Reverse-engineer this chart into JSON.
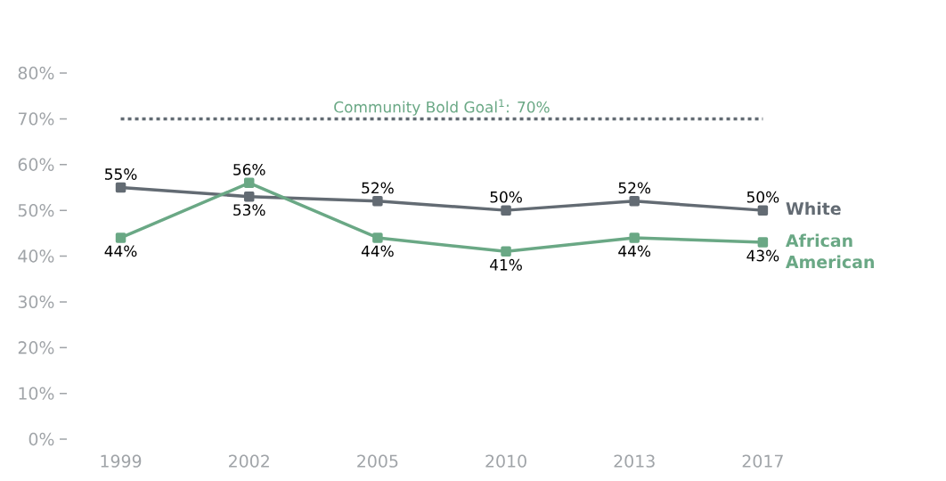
{
  "chart_data": {
    "type": "line",
    "categories": [
      "1999",
      "2002",
      "2005",
      "2010",
      "2013",
      "2017"
    ],
    "series": [
      {
        "name": "White",
        "color": "#636b73",
        "values": [
          55,
          53,
          52,
          50,
          52,
          50
        ],
        "value_labels": [
          "55%",
          "53%",
          "52%",
          "50%",
          "52%",
          "50%"
        ]
      },
      {
        "name": "African American",
        "color": "#6aa885",
        "values": [
          44,
          56,
          44,
          41,
          44,
          43
        ],
        "value_labels": [
          "44%",
          "56%",
          "44%",
          "41%",
          "44%",
          "43%"
        ]
      }
    ],
    "ylim": [
      0,
      80
    ],
    "yticks": [
      {
        "value": 0,
        "label": "0%"
      },
      {
        "value": 10,
        "label": "10%"
      },
      {
        "value": 20,
        "label": "20%"
      },
      {
        "value": 30,
        "label": "30%"
      },
      {
        "value": 40,
        "label": "40%"
      },
      {
        "value": 50,
        "label": "50%"
      },
      {
        "value": 60,
        "label": "60%"
      },
      {
        "value": 70,
        "label": "70%"
      },
      {
        "value": 80,
        "label": "80%"
      }
    ],
    "ref_lines": [
      {
        "axis": "y",
        "value": 70,
        "label": "Community Bold Goal$^{1}$: 70%",
        "color": "#636b73",
        "line_style": "dotted"
      }
    ],
    "grid": false,
    "legend": false,
    "marker": "square",
    "line_style": "solid"
  }
}
